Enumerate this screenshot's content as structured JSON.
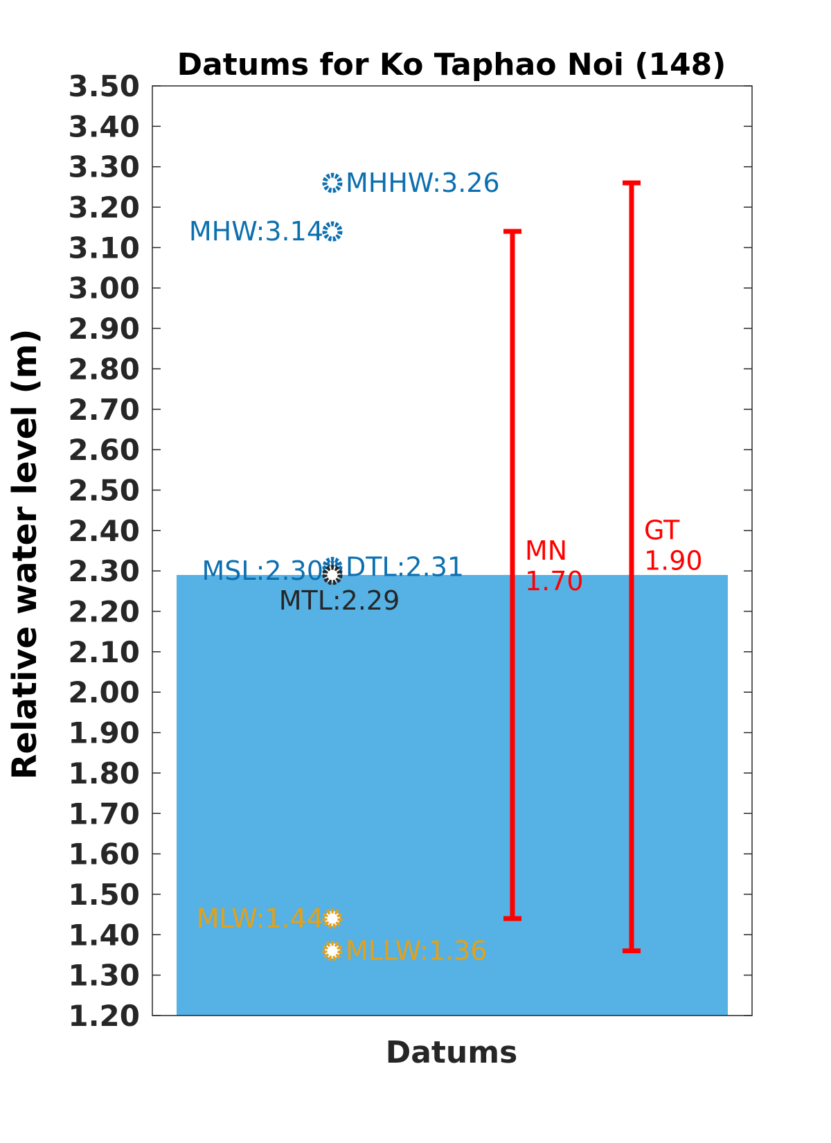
{
  "chart_data": {
    "type": "scatter",
    "title": "Datums for Ko Taphao Noi (148)",
    "xlabel": "Datums",
    "ylabel": "Relative water level (m)",
    "ylim": [
      1.2,
      3.5
    ],
    "yticks": [
      "1.20",
      "1.30",
      "1.40",
      "1.50",
      "1.60",
      "1.70",
      "1.80",
      "1.90",
      "2.00",
      "2.10",
      "2.20",
      "2.30",
      "2.40",
      "2.50",
      "2.60",
      "2.70",
      "2.80",
      "2.90",
      "3.00",
      "3.10",
      "3.20",
      "3.30",
      "3.40",
      "3.50"
    ],
    "grid": false,
    "water_fill": {
      "level": 2.29,
      "color": "#56B1E5"
    },
    "datums": [
      {
        "name": "MHHW",
        "value": 3.26,
        "label": "MHHW:3.26",
        "color": "#0C6FB0",
        "side": "right"
      },
      {
        "name": "MHW",
        "value": 3.14,
        "label": "MHW:3.14",
        "color": "#0C6FB0",
        "side": "left"
      },
      {
        "name": "DTL",
        "value": 2.31,
        "label": "DTL:2.31",
        "color": "#0C6FB0",
        "side": "right"
      },
      {
        "name": "MSL",
        "value": 2.3,
        "label": "MSL:2.30",
        "color": "#0C6FB0",
        "side": "left"
      },
      {
        "name": "MTL",
        "value": 2.29,
        "label": "MTL:2.29",
        "color": "#262626",
        "side": "below"
      },
      {
        "name": "MLW",
        "value": 1.44,
        "label": "MLW:1.44",
        "color": "#E3A11A",
        "side": "left"
      },
      {
        "name": "MLLW",
        "value": 1.36,
        "label": "MLLW:1.36",
        "color": "#E3A11A",
        "side": "right"
      }
    ],
    "ranges": [
      {
        "name": "MN",
        "value_label": "1.70",
        "low": 1.44,
        "high": 3.14,
        "color": "#FF0000"
      },
      {
        "name": "GT",
        "value_label": "1.90",
        "low": 1.36,
        "high": 3.26,
        "color": "#FF0000"
      }
    ]
  }
}
